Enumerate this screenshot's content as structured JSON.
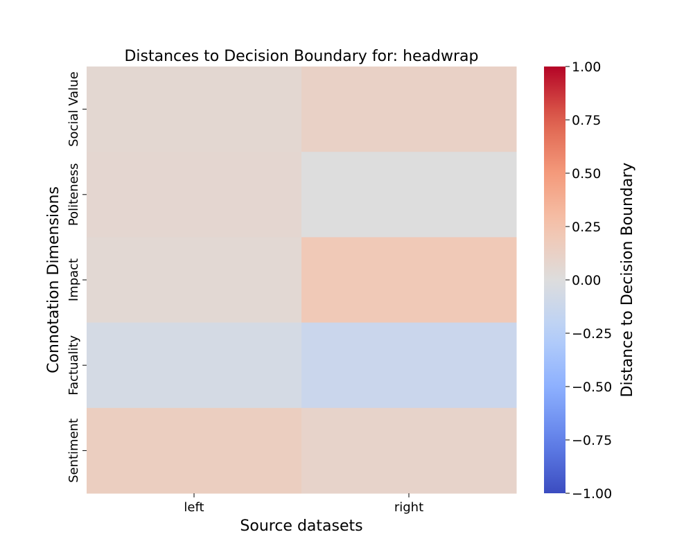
{
  "chart_data": {
    "type": "heatmap",
    "title": "Distances to Decision Boundary for: headwrap",
    "xlabel": "Source datasets",
    "ylabel": "Connotation Dimensions",
    "x_categories": [
      "left",
      "right"
    ],
    "y_categories": [
      "Social Value",
      "Politeness",
      "Impact",
      "Factuality",
      "Sentiment"
    ],
    "values": [
      [
        0.06,
        0.12
      ],
      [
        0.07,
        0.0
      ],
      [
        0.05,
        0.2
      ],
      [
        -0.06,
        -0.13
      ],
      [
        0.15,
        0.1
      ]
    ],
    "colorbar": {
      "label": "Distance to Decision Boundary",
      "colormap": "coolwarm",
      "vmin": -1.0,
      "vmax": 1.0,
      "ticks": [
        1.0,
        0.75,
        0.5,
        0.25,
        0.0,
        -0.25,
        -0.5,
        -0.75,
        -1.0
      ],
      "tick_labels": [
        "1.00",
        "0.75",
        "0.50",
        "0.25",
        "0.00",
        "−0.25",
        "−0.50",
        "−0.75",
        "−1.00"
      ]
    },
    "colors": {
      "low": "#3b4cc0",
      "mid": "#dddddd",
      "high": "#b40426"
    },
    "grid": false,
    "legend": "colorbar-right"
  }
}
